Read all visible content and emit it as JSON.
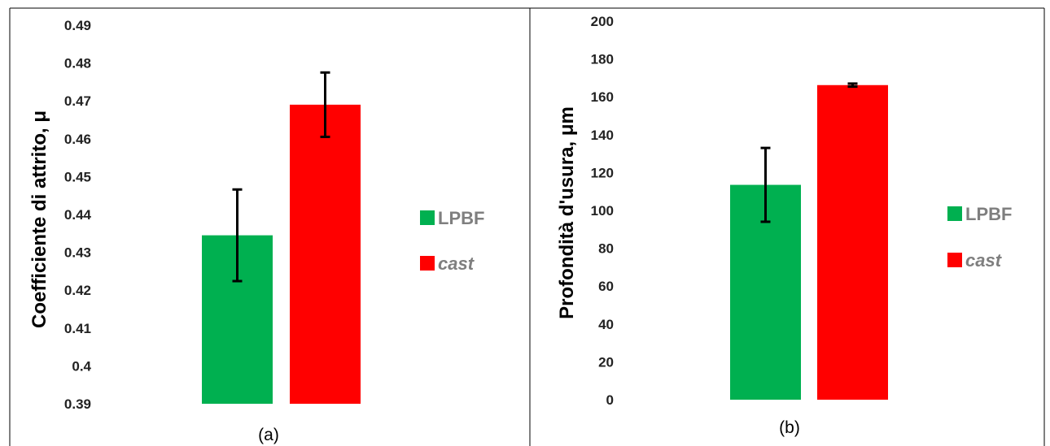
{
  "colors": {
    "LPBF": "#00b050",
    "cast": "#ff0000",
    "error_bar": "#000000",
    "border": "#000000"
  },
  "chart_data": [
    {
      "type": "bar",
      "caption": "(a)",
      "ylabel": "Coefficiente di attrito, μ",
      "ylim": [
        0.39,
        0.49
      ],
      "yticks": [
        0.39,
        0.4,
        0.41,
        0.42,
        0.43,
        0.44,
        0.45,
        0.46,
        0.47,
        0.48,
        0.49
      ],
      "ytick_labels": [
        "0.39",
        "0.4",
        "0.41",
        "0.42",
        "0.43",
        "0.44",
        "0.45",
        "0.46",
        "0.47",
        "0.48",
        "0.49"
      ],
      "grid": false,
      "legend_position": "right",
      "series": [
        {
          "name": "LPBF",
          "value": 0.4345,
          "error": 0.0121
        },
        {
          "name": "cast",
          "value": 0.469,
          "error": 0.0085
        }
      ]
    },
    {
      "type": "bar",
      "caption": "(b)",
      "ylabel": "Profondità d'usura, μm",
      "ylim": [
        0,
        200
      ],
      "yticks": [
        0,
        20,
        40,
        60,
        80,
        100,
        120,
        140,
        160,
        180,
        200
      ],
      "ytick_labels": [
        "0",
        "20",
        "40",
        "60",
        "80",
        "100",
        "120",
        "140",
        "160",
        "180",
        "200"
      ],
      "grid": false,
      "legend_position": "right",
      "series": [
        {
          "name": "LPBF",
          "value": 113.5,
          "error": 19.5
        },
        {
          "name": "cast",
          "value": 166.2,
          "error": 0.8
        }
      ]
    }
  ]
}
